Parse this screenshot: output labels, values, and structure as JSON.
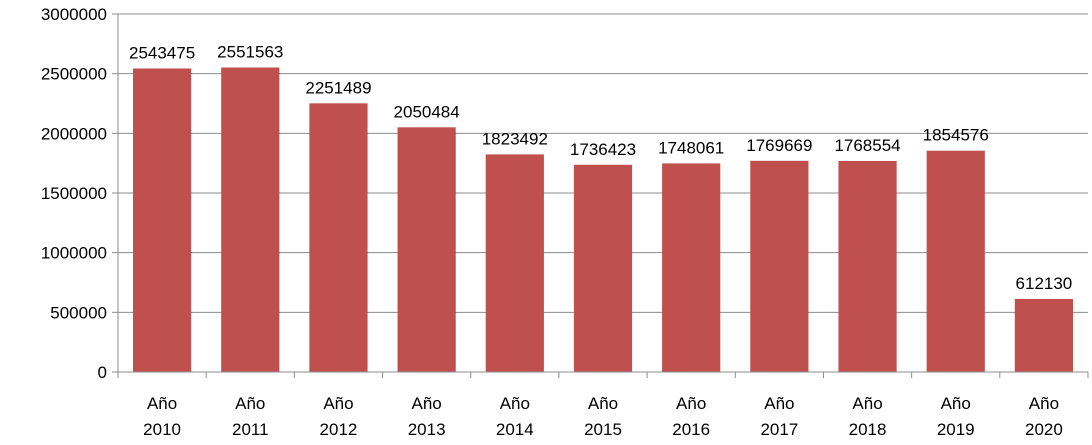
{
  "chart_data": {
    "type": "bar",
    "title": "",
    "xlabel": "",
    "ylabel": "",
    "ylim": [
      0,
      3000000
    ],
    "yticks": [
      0,
      500000,
      1000000,
      1500000,
      2000000,
      2500000,
      3000000
    ],
    "grid": true,
    "legend": "none",
    "bar_color": "#C0504D",
    "categories": [
      [
        "Año",
        "2010"
      ],
      [
        "Año",
        "2011"
      ],
      [
        "Año",
        "2012"
      ],
      [
        "Año",
        "2013"
      ],
      [
        "Año",
        "2014"
      ],
      [
        "Año",
        "2015"
      ],
      [
        "Año",
        "2016"
      ],
      [
        "Año",
        "2017"
      ],
      [
        "Año",
        "2018"
      ],
      [
        "Año",
        "2019"
      ],
      [
        "Año",
        "2020"
      ]
    ],
    "values": [
      2543475,
      2551563,
      2251489,
      2050484,
      1823492,
      1736423,
      1748061,
      1769669,
      1768554,
      1854576,
      612130
    ],
    "data_labels": [
      "2543475",
      "2551563",
      "2251489",
      "2050484",
      "1823492",
      "1736423",
      "1748061",
      "1769669",
      "1768554",
      "1854576",
      "612130"
    ]
  }
}
